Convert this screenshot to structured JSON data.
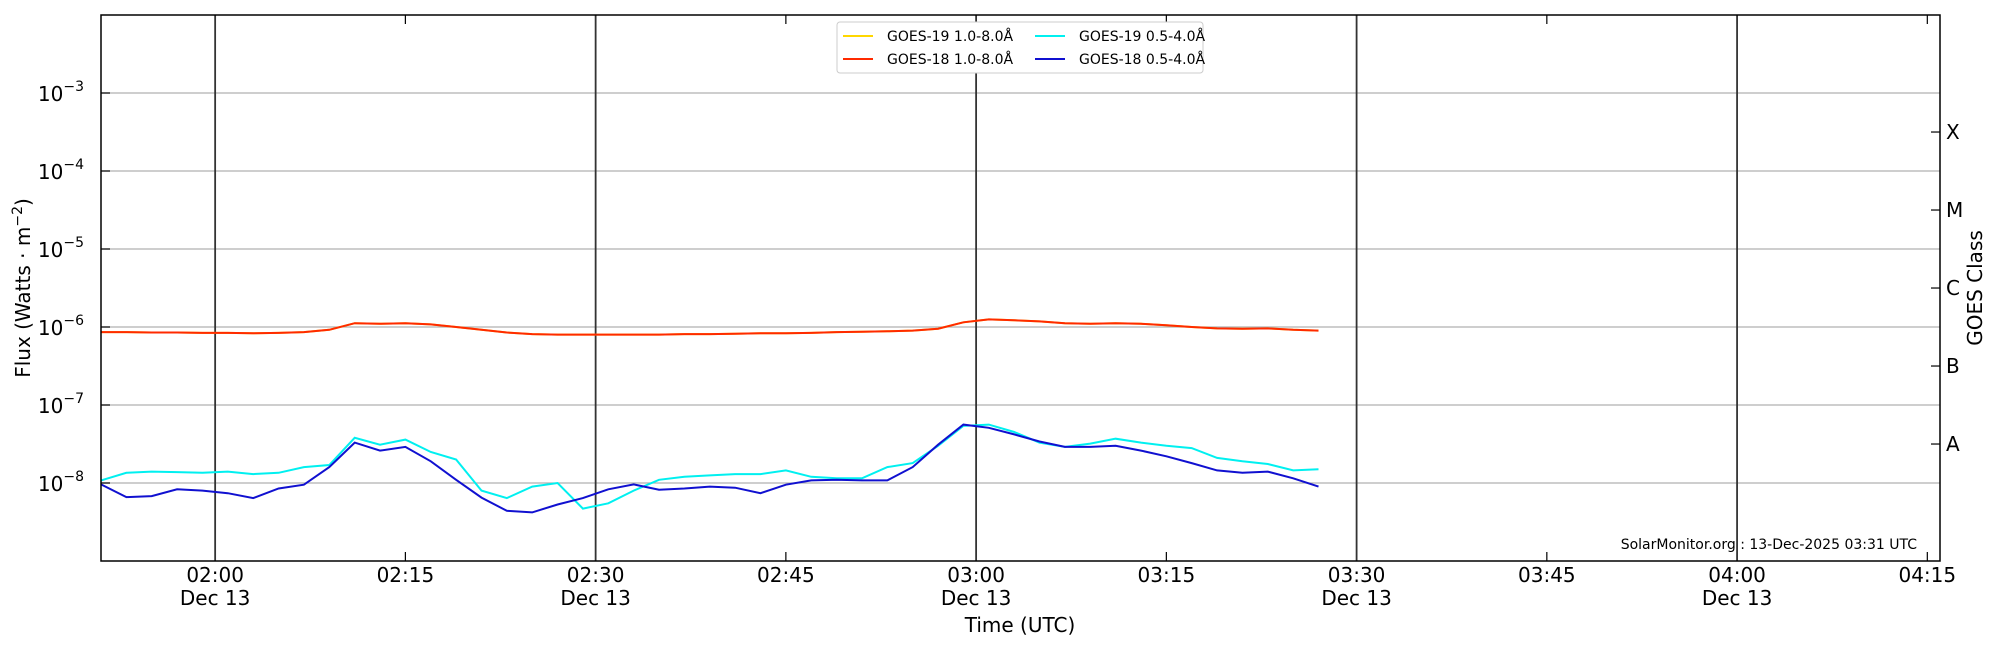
{
  "chart_data": {
    "type": "line",
    "ylabel": {
      "text": "Flux (Watts · m",
      "exponent": "−2",
      "close": ")"
    },
    "xlabel": "Time (UTC)",
    "y2label": "GOES Class",
    "annotation": "SolarMonitor.org : 13-Dec-2025 03:31 UTC",
    "log_y": true,
    "grid": true,
    "legend": "upper center",
    "xlim": [
      "01:51",
      "04:16"
    ],
    "xticks": [
      {
        "value": "02:00",
        "date": "Dec 13"
      },
      "02:15",
      {
        "value": "02:30",
        "date": "Dec 13"
      },
      "02:45",
      {
        "value": "03:00",
        "date": "Dec 13"
      },
      "03:15",
      {
        "value": "03:30",
        "date": "Dec 13"
      },
      "03:45",
      {
        "value": "04:00",
        "date": "Dec 13"
      },
      "04:15"
    ],
    "ylim": [
      1e-09,
      0.01
    ],
    "yticks": [
      {
        "value": 0.001,
        "label": "10",
        "exponent": "−3"
      },
      {
        "value": 0.0001,
        "label": "10",
        "exponent": "−4"
      },
      {
        "value": 1e-05,
        "label": "10",
        "exponent": "−5"
      },
      {
        "value": 1e-06,
        "label": "10",
        "exponent": "−6"
      },
      {
        "value": 1e-07,
        "label": "10",
        "exponent": "−7"
      },
      {
        "value": 1e-08,
        "label": "10",
        "exponent": "−8"
      }
    ],
    "y2lim": [
      1e-09,
      0.01
    ],
    "y2ticks": [
      {
        "value": 0.000316,
        "label": "X"
      },
      {
        "value": 3.16e-05,
        "label": "M"
      },
      {
        "value": 3.16e-06,
        "label": "C"
      },
      {
        "value": 3.16e-07,
        "label": "B"
      },
      {
        "value": 3.16e-08,
        "label": "A"
      }
    ],
    "x": [
      "01:51",
      "01:53",
      "01:55",
      "01:57",
      "01:59",
      "02:01",
      "02:03",
      "02:05",
      "02:07",
      "02:09",
      "02:11",
      "02:13",
      "02:15",
      "02:17",
      "02:19",
      "02:21",
      "02:23",
      "02:25",
      "02:27",
      "02:29",
      "02:31",
      "02:33",
      "02:35",
      "02:37",
      "02:39",
      "02:41",
      "02:43",
      "02:45",
      "02:47",
      "02:49",
      "02:51",
      "02:53",
      "02:55",
      "02:57",
      "02:59",
      "03:01",
      "03:03",
      "03:05",
      "03:07",
      "03:09",
      "03:11",
      "03:13",
      "03:15",
      "03:17",
      "03:19",
      "03:21",
      "03:23",
      "03:25",
      "03:27"
    ],
    "series": [
      {
        "name": "GOES-19 1.0-8.0Å",
        "color": "#ffd700",
        "values": [
          8.6e-07,
          8.6e-07,
          8.5e-07,
          8.5e-07,
          8.4e-07,
          8.4e-07,
          8.3e-07,
          8.4e-07,
          8.6e-07,
          9.2e-07,
          1.12e-06,
          1.1e-06,
          1.12e-06,
          1.08e-06,
          1e-06,
          9.2e-07,
          8.5e-07,
          8.1e-07,
          8e-07,
          8e-07,
          8e-07,
          8e-07,
          8e-07,
          8.1e-07,
          8.1e-07,
          8.2e-07,
          8.3e-07,
          8.3e-07,
          8.4e-07,
          8.6e-07,
          8.7e-07,
          8.8e-07,
          9e-07,
          9.5e-07,
          1.15e-06,
          1.25e-06,
          1.22e-06,
          1.18e-06,
          1.12e-06,
          1.1e-06,
          1.12e-06,
          1.1e-06,
          1.05e-06,
          1e-06,
          9.6e-07,
          9.5e-07,
          9.6e-07,
          9.2e-07,
          9e-07
        ]
      },
      {
        "name": "GOES-18 1.0-8.0Å",
        "color": "#ff2a00",
        "values": [
          8.6e-07,
          8.6e-07,
          8.5e-07,
          8.5e-07,
          8.4e-07,
          8.4e-07,
          8.3e-07,
          8.4e-07,
          8.6e-07,
          9.2e-07,
          1.12e-06,
          1.1e-06,
          1.12e-06,
          1.08e-06,
          1e-06,
          9.2e-07,
          8.5e-07,
          8.1e-07,
          8e-07,
          8e-07,
          8e-07,
          8e-07,
          8e-07,
          8.1e-07,
          8.1e-07,
          8.2e-07,
          8.3e-07,
          8.3e-07,
          8.4e-07,
          8.6e-07,
          8.7e-07,
          8.8e-07,
          9e-07,
          9.5e-07,
          1.15e-06,
          1.25e-06,
          1.22e-06,
          1.18e-06,
          1.12e-06,
          1.1e-06,
          1.12e-06,
          1.1e-06,
          1.05e-06,
          1e-06,
          9.6e-07,
          9.5e-07,
          9.6e-07,
          9.2e-07,
          9e-07
        ]
      },
      {
        "name": "GOES-19 0.5-4.0Å",
        "color": "#00f0f0",
        "values": [
          1.08e-08,
          1.35e-08,
          1.4e-08,
          1.38e-08,
          1.35e-08,
          1.4e-08,
          1.3e-08,
          1.35e-08,
          1.6e-08,
          1.7e-08,
          3.8e-08,
          3.1e-08,
          3.6e-08,
          2.5e-08,
          2e-08,
          8e-09,
          6.4e-09,
          9e-09,
          1e-08,
          4.7e-09,
          5.5e-09,
          8e-09,
          1.1e-08,
          1.2e-08,
          1.25e-08,
          1.3e-08,
          1.3e-08,
          1.45e-08,
          1.2e-08,
          1.15e-08,
          1.15e-08,
          1.6e-08,
          1.8e-08,
          3e-08,
          5.4e-08,
          5.6e-08,
          4.5e-08,
          3.3e-08,
          2.9e-08,
          3.2e-08,
          3.7e-08,
          3.3e-08,
          3e-08,
          2.8e-08,
          2.1e-08,
          1.9e-08,
          1.75e-08,
          1.45e-08,
          1.5e-08
        ]
      },
      {
        "name": "GOES-18 0.5-4.0Å",
        "color": "#1010d0",
        "values": [
          9.6e-09,
          6.6e-09,
          6.8e-09,
          8.3e-09,
          8e-09,
          7.4e-09,
          6.4e-09,
          8.5e-09,
          9.5e-09,
          1.6e-08,
          3.3e-08,
          2.6e-08,
          2.9e-08,
          1.9e-08,
          1.1e-08,
          6.5e-09,
          4.4e-09,
          4.2e-09,
          5.3e-09,
          6.4e-09,
          8.3e-09,
          9.6e-09,
          8.2e-09,
          8.5e-09,
          9e-09,
          8.7e-09,
          7.4e-09,
          9.5e-09,
          1.08e-08,
          1.1e-08,
          1.08e-08,
          1.08e-08,
          1.6e-08,
          3.1e-08,
          5.6e-08,
          5.1e-08,
          4.2e-08,
          3.4e-08,
          2.9e-08,
          2.9e-08,
          3e-08,
          2.6e-08,
          2.2e-08,
          1.8e-08,
          1.45e-08,
          1.35e-08,
          1.4e-08,
          1.15e-08,
          9e-09
        ]
      }
    ]
  }
}
